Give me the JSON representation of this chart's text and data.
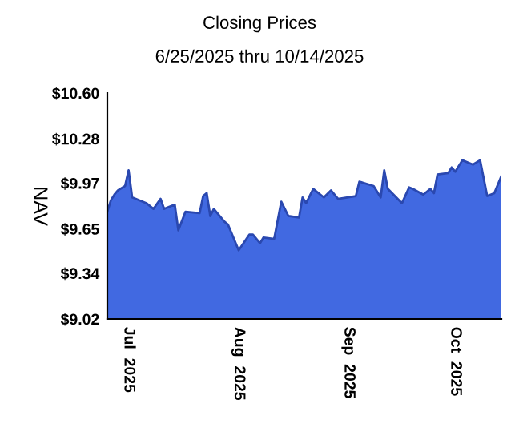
{
  "chart_data": {
    "type": "area",
    "title": "Closing Prices",
    "subtitle": "6/25/2025 thru 10/14/2025",
    "ylabel": "NAV",
    "x": [
      "2025-06-25",
      "2025-06-26",
      "2025-06-27",
      "2025-06-28",
      "2025-06-30",
      "2025-07-01",
      "2025-07-02",
      "2025-07-03",
      "2025-07-06",
      "2025-07-08",
      "2025-07-10",
      "2025-07-11",
      "2025-07-14",
      "2025-07-15",
      "2025-07-17",
      "2025-07-21",
      "2025-07-22",
      "2025-07-23",
      "2025-07-24",
      "2025-07-25",
      "2025-07-28",
      "2025-07-29",
      "2025-08-01",
      "2025-08-04",
      "2025-08-05",
      "2025-08-07",
      "2025-08-08",
      "2025-08-11",
      "2025-08-13",
      "2025-08-15",
      "2025-08-18",
      "2025-08-19",
      "2025-08-20",
      "2025-08-22",
      "2025-08-25",
      "2025-08-27",
      "2025-08-29",
      "2025-09-03",
      "2025-09-04",
      "2025-09-08",
      "2025-09-10",
      "2025-09-11",
      "2025-09-12",
      "2025-09-16",
      "2025-09-18",
      "2025-09-19",
      "2025-09-22",
      "2025-09-24",
      "2025-09-25",
      "2025-09-26",
      "2025-09-29",
      "2025-09-30",
      "2025-10-01",
      "2025-10-03",
      "2025-10-05",
      "2025-10-06",
      "2025-10-08",
      "2025-10-10",
      "2025-10-12",
      "2025-10-14"
    ],
    "series": [
      {
        "color": "#4169e1",
        "values": [
          9.77,
          9.85,
          9.89,
          9.92,
          9.95,
          10.06,
          9.87,
          9.86,
          9.83,
          9.79,
          9.86,
          9.79,
          9.82,
          9.64,
          9.77,
          9.76,
          9.88,
          9.9,
          9.74,
          9.79,
          9.7,
          9.68,
          9.5,
          9.61,
          9.61,
          9.55,
          9.59,
          9.58,
          9.84,
          9.74,
          9.73,
          9.87,
          9.83,
          9.93,
          9.87,
          9.92,
          9.86,
          9.88,
          9.98,
          9.95,
          9.87,
          10.06,
          9.93,
          9.83,
          9.94,
          9.93,
          9.89,
          9.93,
          9.9,
          10.03,
          10.04,
          10.08,
          10.05,
          10.13,
          10.11,
          10.1,
          10.13,
          9.88,
          9.9,
          10.02
        ]
      }
    ],
    "xlim": [
      "2025-06-25",
      "2025-10-14"
    ],
    "xticks": [
      {
        "value": "2025-07-01",
        "label": "Jul  2025"
      },
      {
        "value": "2025-08-01",
        "label": "Aug  2025"
      },
      {
        "value": "2025-09-01",
        "label": "Sep  2025"
      },
      {
        "value": "2025-10-01",
        "label": "Oct  2025"
      }
    ],
    "ylim": [
      9.02,
      10.6
    ],
    "yticks": [
      {
        "value": 9.02,
        "label": "$9.02"
      },
      {
        "value": 9.34,
        "label": "$9.34"
      },
      {
        "value": 9.65,
        "label": "$9.65"
      },
      {
        "value": 9.97,
        "label": "$9.97"
      },
      {
        "value": 10.28,
        "label": "$10.28"
      },
      {
        "value": 10.6,
        "label": "$10.60"
      }
    ],
    "grid": false,
    "legend": false
  }
}
